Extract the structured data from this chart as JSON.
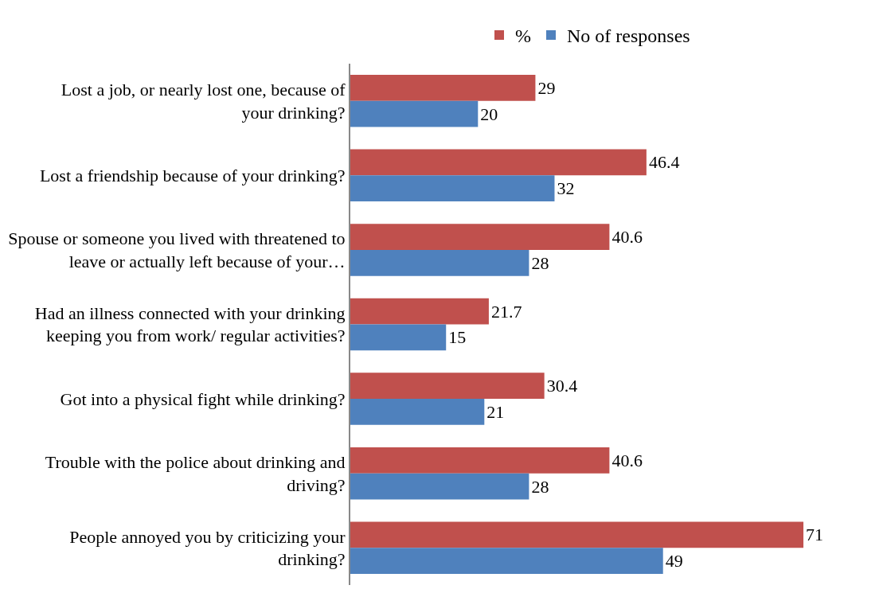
{
  "chart_data": {
    "type": "bar",
    "orientation": "horizontal",
    "categories": [
      "Lost a job, or nearly lost one, because of your drinking?",
      "Lost a friendship because of your drinking?",
      "Spouse or someone you lived with threatened to leave or actually left because of your…",
      "Had an illness connected with your drinking keeping you from work/ regular activities?",
      "Got into a physical fight while drinking?",
      "Trouble with the police about drinking and driving?",
      "People annoyed you by criticizing your drinking?"
    ],
    "series": [
      {
        "name": "%",
        "color": "#c0504d",
        "values": [
          29,
          46.4,
          40.6,
          21.7,
          30.4,
          40.6,
          71
        ]
      },
      {
        "name": "No of responses",
        "color": "#4f81bd",
        "values": [
          20,
          32,
          28,
          15,
          21,
          28,
          49
        ]
      }
    ],
    "data_labels": true,
    "legend": "top"
  }
}
